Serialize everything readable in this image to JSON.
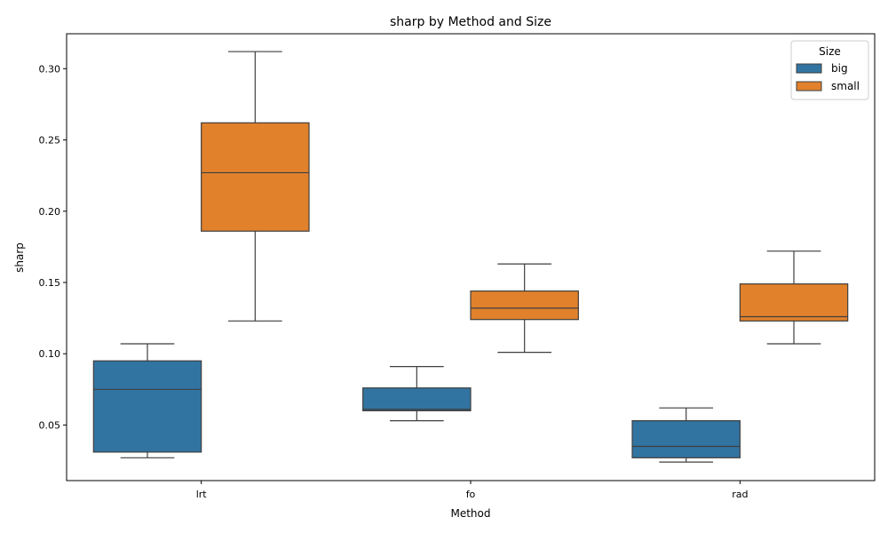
{
  "chart_data": {
    "type": "box",
    "title": "sharp by Method and Size",
    "xlabel": "Method",
    "ylabel": "sharp",
    "categories": [
      "lrt",
      "fo",
      "rad"
    ],
    "ylim": [
      0.011,
      0.3245
    ],
    "yticks": [
      0.05,
      0.1,
      0.15,
      0.2,
      0.25,
      0.3
    ],
    "ytick_labels": [
      "0.05",
      "0.10",
      "0.15",
      "0.20",
      "0.25",
      "0.30"
    ],
    "grid": false,
    "legend": {
      "title": "Size",
      "placement": "top-right"
    },
    "series": [
      {
        "name": "big",
        "color": "#3274a1",
        "boxes": [
          {
            "category": "lrt",
            "whislo": 0.027,
            "q1": 0.031,
            "median": 0.075,
            "q3": 0.095,
            "whishi": 0.107
          },
          {
            "category": "fo",
            "whislo": 0.053,
            "q1": 0.06,
            "median": 0.061,
            "q3": 0.076,
            "whishi": 0.091
          },
          {
            "category": "rad",
            "whislo": 0.024,
            "q1": 0.027,
            "median": 0.035,
            "q3": 0.053,
            "whishi": 0.062
          }
        ]
      },
      {
        "name": "small",
        "color": "#e1812c",
        "boxes": [
          {
            "category": "lrt",
            "whislo": 0.123,
            "q1": 0.186,
            "median": 0.227,
            "q3": 0.262,
            "whishi": 0.312
          },
          {
            "category": "fo",
            "whislo": 0.101,
            "q1": 0.124,
            "median": 0.132,
            "q3": 0.144,
            "whishi": 0.163
          },
          {
            "category": "rad",
            "whislo": 0.107,
            "q1": 0.123,
            "median": 0.126,
            "q3": 0.149,
            "whishi": 0.172
          }
        ]
      }
    ]
  }
}
